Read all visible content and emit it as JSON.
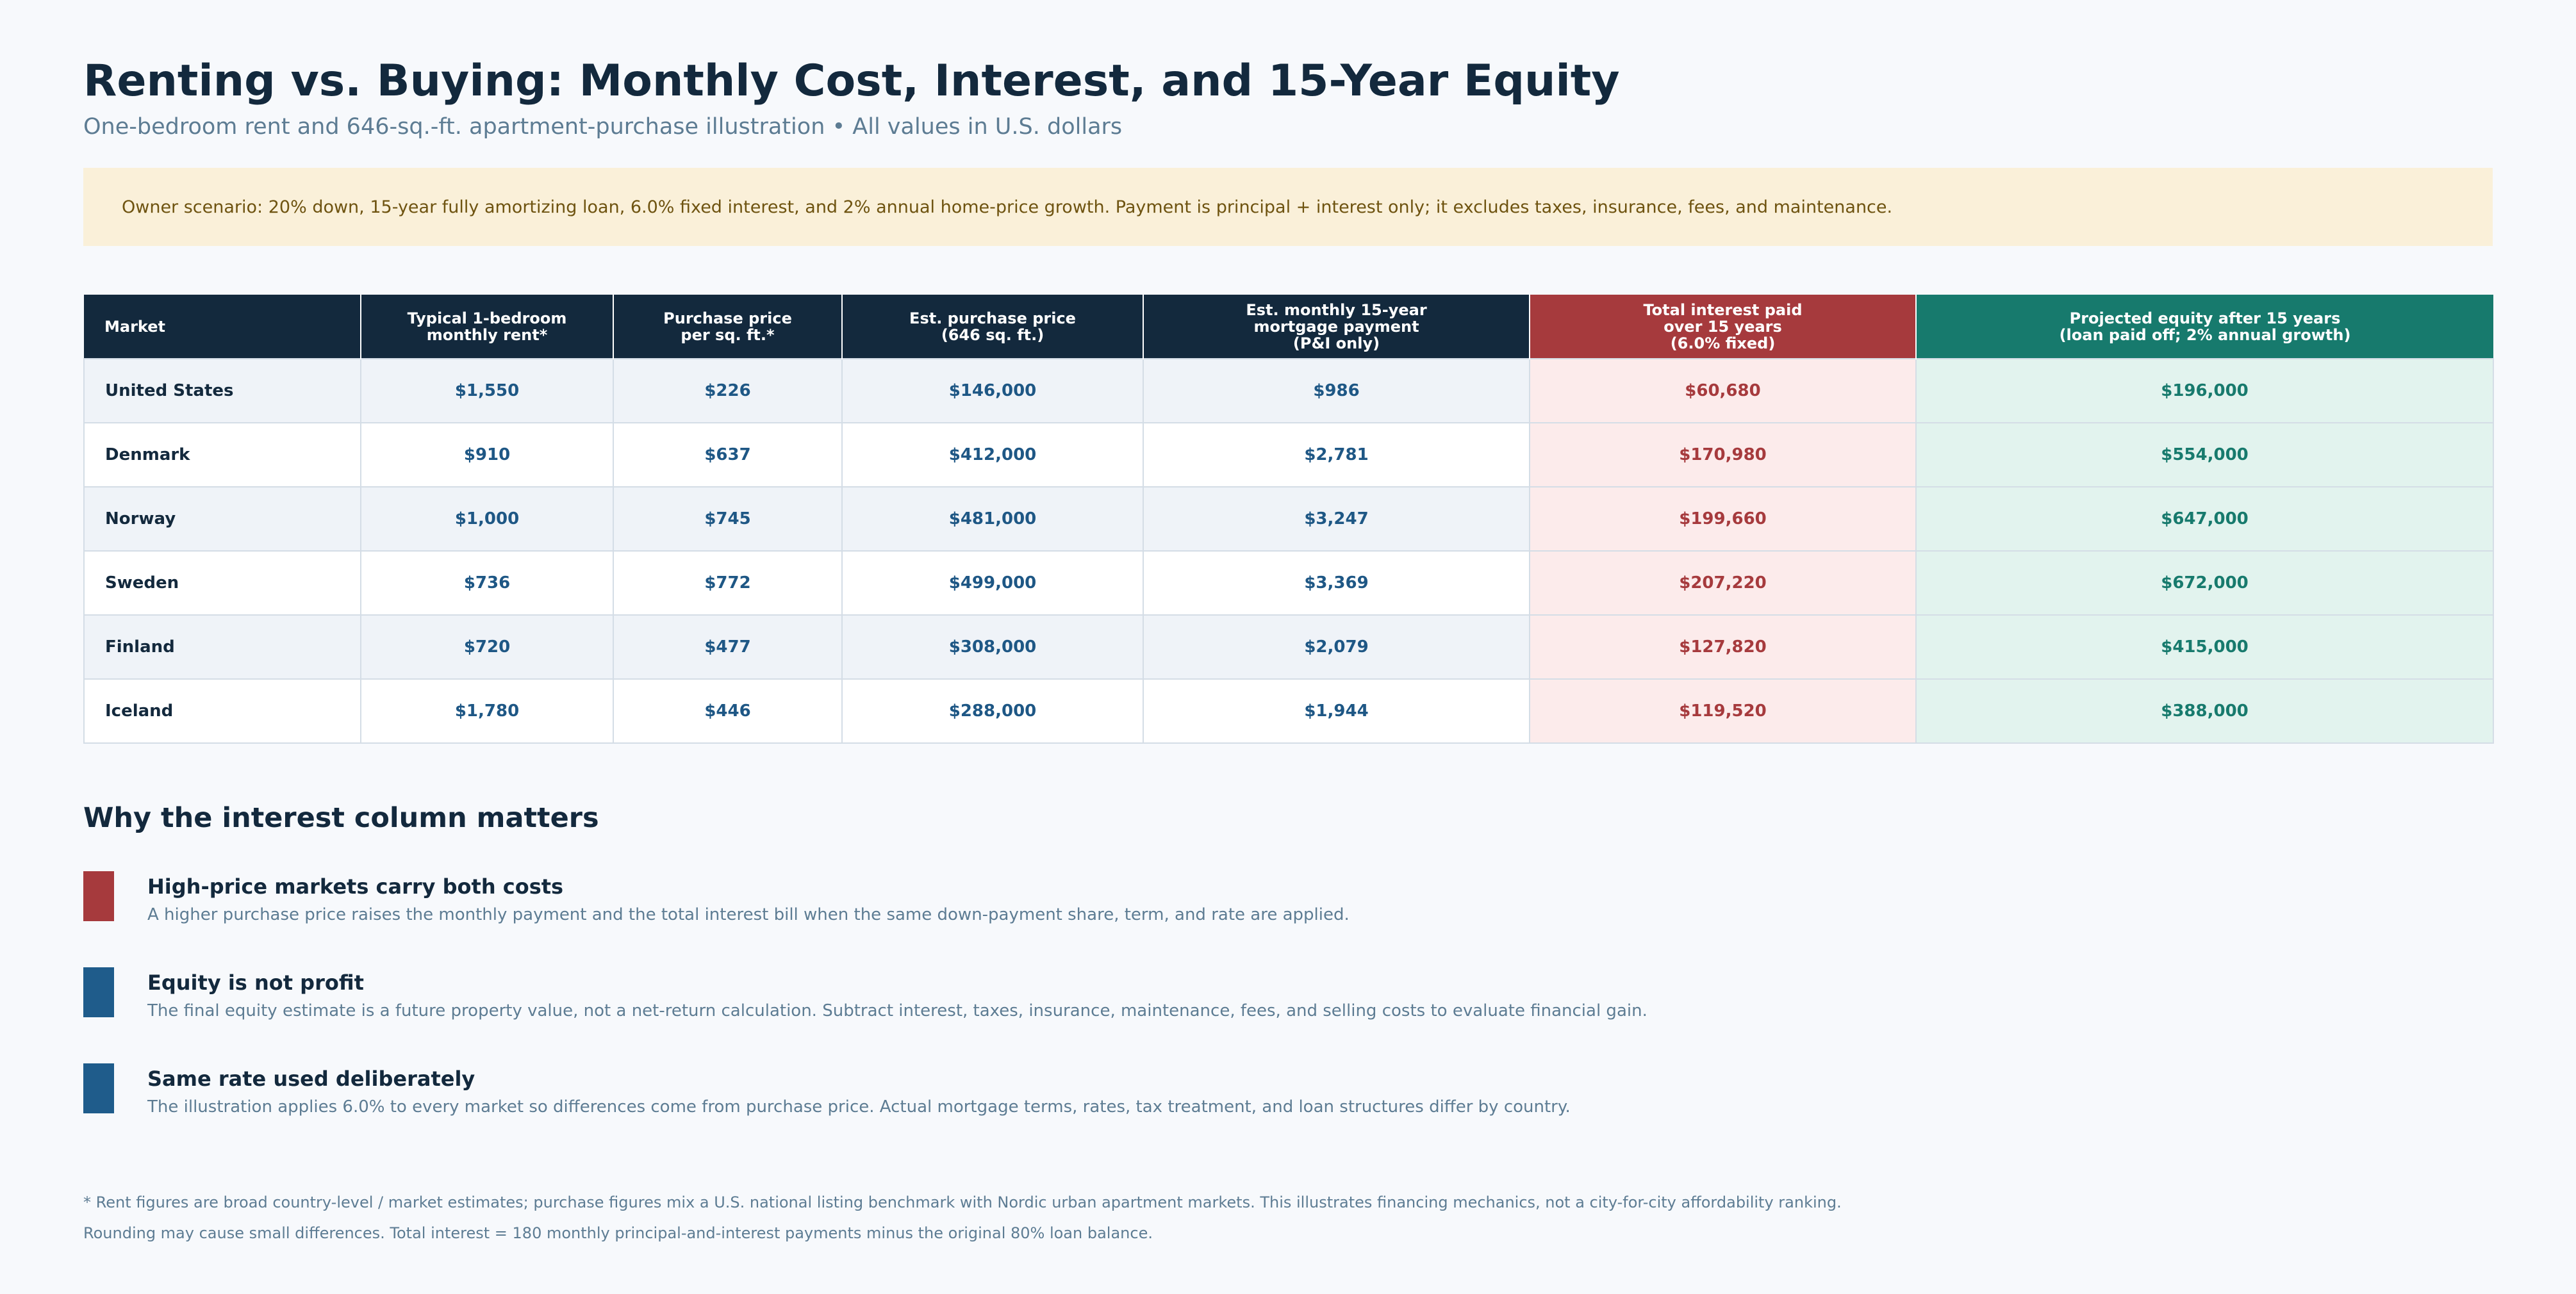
{
  "header": {
    "title": "Renting vs. Buying: Monthly Cost, Interest, and 15-Year Equity",
    "subtitle": "One-bedroom rent and 646-sq.-ft. apartment-purchase illustration • All values in U.S. dollars"
  },
  "scenario_note": "Owner scenario: 20% down, 15-year fully amortizing loan, 6.0% fixed interest, and 2% annual home-price growth. Payment is principal + interest only; it excludes taxes, insurance, fees, and maintenance.",
  "table": {
    "columns": [
      "Market",
      "Typical 1-bedroom\nmonthly rent*",
      "Purchase price\nper sq. ft.*",
      "Est. purchase price\n(646 sq. ft.)",
      "Est. monthly 15-year\nmortgage payment\n(P&I only)",
      "Total interest paid\nover 15 years\n(6.0% fixed)",
      "Projected equity after 15 years\n(loan paid off; 2% annual growth)"
    ],
    "rows": [
      [
        "United States",
        "$1,550",
        "$226",
        "$146,000",
        "$986",
        "$60,680",
        "$196,000"
      ],
      [
        "Denmark",
        "$910",
        "$637",
        "$412,000",
        "$2,781",
        "$170,980",
        "$554,000"
      ],
      [
        "Norway",
        "$1,000",
        "$745",
        "$481,000",
        "$3,247",
        "$199,660",
        "$647,000"
      ],
      [
        "Sweden",
        "$736",
        "$772",
        "$499,000",
        "$3,369",
        "$207,220",
        "$672,000"
      ],
      [
        "Finland",
        "$720",
        "$477",
        "$308,000",
        "$2,079",
        "$127,820",
        "$415,000"
      ],
      [
        "Iceland",
        "$1,780",
        "$446",
        "$288,000",
        "$1,944",
        "$119,520",
        "$388,000"
      ]
    ]
  },
  "section": {
    "heading": "Why the interest column matters",
    "points": [
      {
        "title": "High-price markets carry both costs",
        "text": "A higher purchase price raises the monthly payment and the total interest bill when the same down-payment share, term, and rate are applied.",
        "color": "#a63a3d"
      },
      {
        "title": "Equity is not profit",
        "text": "The final equity estimate is a future property value, not a net-return calculation. Subtract interest, taxes, insurance, maintenance, fees, and selling costs to evaluate financial gain.",
        "color": "#1f5c8b"
      },
      {
        "title": "Same rate used deliberately",
        "text": "The illustration applies 6.0% to every market so differences come from purchase price. Actual mortgage terms, rates, tax treatment, and loan structures differ by country.",
        "color": "#1f5c8b"
      }
    ]
  },
  "footnotes": [
    "* Rent figures are broad country-level / market estimates; purchase figures mix a U.S. national listing benchmark with Nordic urban apartment markets. This illustrates financing mechanics, not a city-for-city affordability ranking.",
    "Rounding may cause small differences. Total interest = 180 monthly principal-and-interest payments minus the original 80% loan balance."
  ],
  "colors": {
    "navy": "#13293d",
    "interest_red": "#a63a3d",
    "equity_green": "#177a6d",
    "value_blue": "#1e5785",
    "note_background": "#faf0d9"
  }
}
